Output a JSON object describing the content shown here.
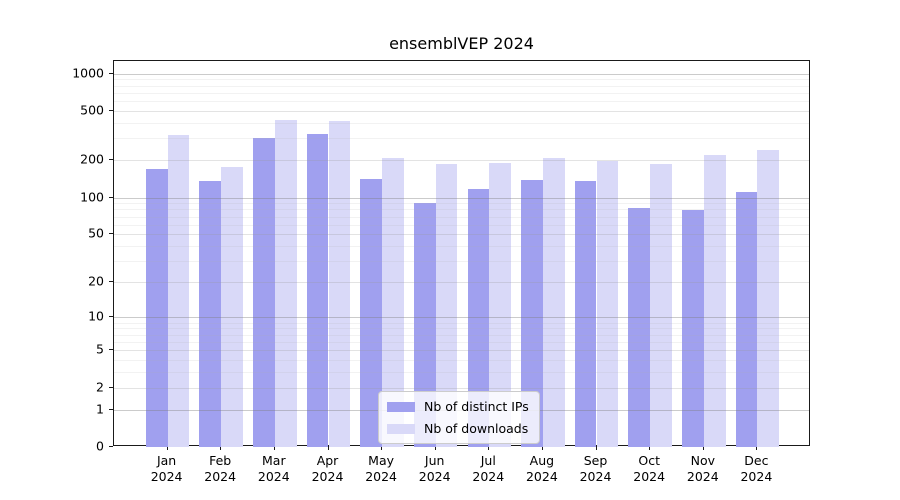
{
  "figure": {
    "background": "#ffffff",
    "axis_color": "#1a1a1a"
  },
  "chart_data": {
    "type": "bar",
    "title": "ensemblVEP 2024",
    "scale": "log10(1+x)",
    "xlabel": "",
    "ylabel": "",
    "ylim": [
      0,
      1260
    ],
    "grid": true,
    "legend_position": "lower center",
    "categories": [
      "Jan",
      "Feb",
      "Mar",
      "Apr",
      "May",
      "Jun",
      "Jul",
      "Aug",
      "Sep",
      "Oct",
      "Nov",
      "Dec"
    ],
    "category_year": "2024",
    "y_ticks": [
      0,
      1,
      2,
      5,
      10,
      20,
      50,
      100,
      200,
      500,
      1000
    ],
    "series": [
      {
        "name": "Nb of distinct IPs",
        "color": "#a0a0ef",
        "values": [
          170,
          135,
          305,
          325,
          140,
          91,
          117,
          138,
          137,
          82,
          79,
          111
        ]
      },
      {
        "name": "Nb of downloads",
        "color": "#d9d9f8",
        "values": [
          320,
          177,
          425,
          415,
          210,
          186,
          190,
          207,
          197,
          188,
          219,
          241
        ]
      }
    ]
  }
}
